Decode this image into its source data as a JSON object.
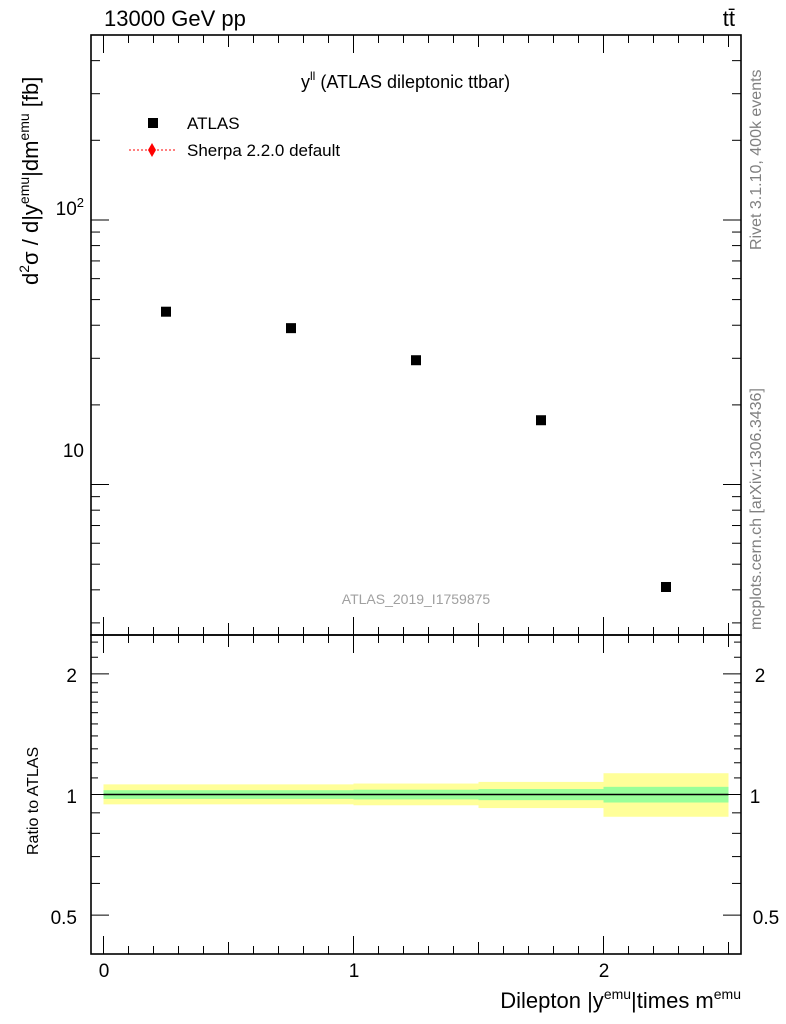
{
  "header": {
    "energy": "13000 GeV pp",
    "process": "tt̄"
  },
  "sidebar": {
    "rivet": "Rivet 3.1.10,  400k events",
    "source": "mcplots.cern.ch [arXiv:1306.3436]"
  },
  "chart_data": [
    {
      "type": "scatter",
      "title_main": "y",
      "title_sup": "ll",
      "title_rest": " (ATLAS dileptonic ttbar)",
      "ylabel": {
        "d": "d",
        "two": "2",
        "sigma_slash": "σ / d|y",
        "emu1": "emu",
        "dm": "|dm",
        "emu2": "emu",
        "unit": " [fb]"
      },
      "y_scale": "log",
      "ylim": [
        2.7,
        500
      ],
      "xlim": [
        -0.05,
        2.55
      ],
      "yticks_major": [
        {
          "value": 10,
          "label": "10"
        },
        {
          "value": 100,
          "base": "10",
          "exp": "2"
        }
      ],
      "series": [
        {
          "name": "ATLAS",
          "color": "#000000",
          "marker": "square",
          "x": [
            0.25,
            0.75,
            1.25,
            1.75,
            2.25
          ],
          "values": [
            45,
            39,
            29.5,
            17.5,
            4.1
          ]
        },
        {
          "name": "Sherpa 2.2.0 default",
          "color": "#ff0000",
          "marker": "diamond",
          "x": [],
          "values": []
        }
      ],
      "watermark": "ATLAS_2019_I1759875"
    },
    {
      "type": "area",
      "ylabel": "Ratio to ATLAS",
      "y_scale": "log",
      "ylim": [
        0.4,
        2.5
      ],
      "xlim": [
        -0.05,
        2.55
      ],
      "yticks_major": [
        {
          "value": 0.5,
          "label": "0.5"
        },
        {
          "value": 1,
          "label": "1"
        },
        {
          "value": 2,
          "label": "2"
        }
      ],
      "xticks": [
        {
          "value": 0,
          "label": "0"
        },
        {
          "value": 1,
          "label": "1"
        },
        {
          "value": 2,
          "label": "2"
        }
      ],
      "xlabel": {
        "pre": "Dilepton |y",
        "sup1": "emu",
        "mid": "|times m",
        "sup2": "emu"
      },
      "bins": [
        0,
        0.5,
        1.0,
        1.5,
        2.0,
        2.5
      ],
      "stat_band": [
        [
          0.975,
          1.025
        ],
        [
          0.975,
          1.025
        ],
        [
          0.972,
          1.028
        ],
        [
          0.968,
          1.032
        ],
        [
          0.955,
          1.045
        ]
      ],
      "total_band": [
        [
          0.945,
          1.06
        ],
        [
          0.945,
          1.06
        ],
        [
          0.94,
          1.065
        ],
        [
          0.925,
          1.075
        ],
        [
          0.88,
          1.13
        ]
      ],
      "band_colors": {
        "stat": "#99ff99",
        "total": "#ffff99"
      },
      "ratio_line": 1
    }
  ]
}
